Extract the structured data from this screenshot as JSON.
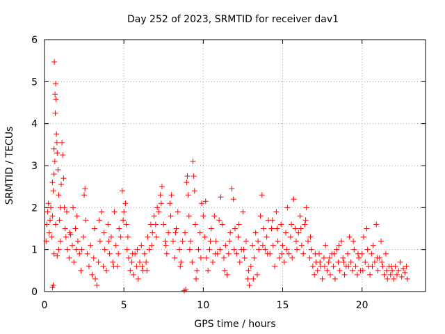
{
  "chart_data": {
    "type": "scatter",
    "title": "Day 252 of 2023, SRMTID for receiver dav1",
    "xlabel": "GPS time / hours",
    "ylabel": "SRMTID / TECUs",
    "xlim": [
      0,
      24
    ],
    "ylim": [
      0,
      6
    ],
    "xticks": [
      0,
      5,
      10,
      15,
      20
    ],
    "yticks": [
      0,
      1,
      2,
      3,
      4,
      5,
      6
    ],
    "grid": true,
    "marker": "+",
    "series": [
      {
        "name": "SRMTID",
        "color": "#ff0000",
        "points": [
          [
            0.1,
            1.2
          ],
          [
            0.15,
            1.6
          ],
          [
            0.2,
            1.9
          ],
          [
            0.25,
            2.1
          ],
          [
            0.3,
            1.4
          ],
          [
            0.35,
            1.7
          ],
          [
            0.4,
            2.0
          ],
          [
            0.45,
            1.3
          ],
          [
            0.5,
            1.8
          ],
          [
            0.55,
            2.4
          ],
          [
            0.6,
            2.8
          ],
          [
            0.62,
            5.47
          ],
          [
            0.66,
            4.7
          ],
          [
            0.7,
            4.95
          ],
          [
            0.72,
            4.58
          ],
          [
            0.68,
            4.25
          ],
          [
            0.75,
            3.75
          ],
          [
            0.78,
            3.55
          ],
          [
            0.8,
            3.3
          ],
          [
            0.85,
            2.9
          ],
          [
            0.6,
            3.4
          ],
          [
            0.65,
            3.1
          ],
          [
            0.5,
            2.6
          ],
          [
            0.55,
            0.15
          ],
          [
            0.5,
            0.1
          ],
          [
            0.9,
            2.3
          ],
          [
            0.95,
            1.7
          ],
          [
            1.0,
            2.0
          ],
          [
            1.05,
            2.55
          ],
          [
            1.1,
            3.55
          ],
          [
            1.15,
            3.25
          ],
          [
            1.2,
            2.7
          ],
          [
            1.25,
            2.0
          ],
          [
            1.3,
            1.5
          ],
          [
            1.0,
            1.2
          ],
          [
            0.9,
            1.0
          ],
          [
            0.8,
            0.85
          ],
          [
            0.7,
            1.6
          ],
          [
            0.6,
            0.9
          ],
          [
            1.35,
            1.3
          ],
          [
            1.45,
            1.0
          ],
          [
            1.55,
            0.8
          ],
          [
            1.65,
            1.35
          ],
          [
            1.75,
            1.1
          ],
          [
            1.85,
            0.7
          ],
          [
            1.95,
            1.5
          ],
          [
            2.05,
            1.8
          ],
          [
            2.1,
            1.2
          ],
          [
            2.2,
            0.9
          ],
          [
            2.3,
            0.5
          ],
          [
            2.35,
            1.0
          ],
          [
            2.45,
            1.3
          ],
          [
            2.5,
            2.3
          ],
          [
            2.55,
            2.45
          ],
          [
            2.6,
            1.7
          ],
          [
            2.7,
            0.9
          ],
          [
            2.8,
            0.6
          ],
          [
            2.9,
            1.1
          ],
          [
            3.0,
            0.4
          ],
          [
            3.1,
            0.8
          ],
          [
            3.2,
            0.3
          ],
          [
            3.3,
            0.15
          ],
          [
            3.4,
            0.7
          ],
          [
            3.5,
            1.2
          ],
          [
            3.6,
            1.9
          ],
          [
            3.7,
            0.6
          ],
          [
            3.8,
            1.0
          ],
          [
            3.9,
            0.5
          ],
          [
            4.0,
            1.6
          ],
          [
            4.1,
            0.9
          ],
          [
            4.2,
            1.3
          ],
          [
            4.3,
            0.7
          ],
          [
            4.4,
            1.9
          ],
          [
            4.5,
            1.1
          ],
          [
            4.6,
            0.6
          ],
          [
            4.7,
            1.5
          ],
          [
            4.8,
            1.3
          ],
          [
            4.9,
            2.4
          ],
          [
            5.0,
            1.9
          ],
          [
            5.1,
            2.1
          ],
          [
            5.15,
            1.6
          ],
          [
            5.2,
            1.0
          ],
          [
            5.3,
            0.8
          ],
          [
            5.4,
            0.5
          ],
          [
            5.5,
            0.7
          ],
          [
            5.6,
            0.4
          ],
          [
            5.7,
            0.9
          ],
          [
            5.8,
            0.6
          ],
          [
            5.9,
            0.3
          ],
          [
            6.0,
            0.7
          ],
          [
            6.1,
            1.1
          ],
          [
            6.2,
            0.5
          ],
          [
            6.3,
            0.9
          ],
          [
            6.4,
            0.7
          ],
          [
            6.5,
            1.3
          ],
          [
            6.6,
            1.0
          ],
          [
            6.7,
            1.6
          ],
          [
            6.8,
            1.4
          ],
          [
            6.9,
            1.8
          ],
          [
            7.0,
            1.6
          ],
          [
            7.1,
            2.0
          ],
          [
            7.2,
            1.9
          ],
          [
            7.3,
            2.3
          ],
          [
            7.4,
            2.5
          ],
          [
            7.5,
            1.6
          ],
          [
            7.6,
            1.2
          ],
          [
            7.7,
            0.9
          ],
          [
            7.8,
            1.4
          ],
          [
            7.9,
            2.1
          ],
          [
            8.0,
            2.3
          ],
          [
            8.1,
            1.2
          ],
          [
            8.2,
            0.8
          ],
          [
            8.3,
            1.5
          ],
          [
            8.4,
            1.9
          ],
          [
            8.5,
            1.0
          ],
          [
            8.6,
            0.7
          ],
          [
            8.7,
            1.2
          ],
          [
            8.8,
            0.02
          ],
          [
            8.9,
            0.05
          ],
          [
            8.95,
            2.6
          ],
          [
            9.0,
            2.75
          ],
          [
            9.05,
            2.3
          ],
          [
            9.1,
            1.8
          ],
          [
            9.2,
            1.2
          ],
          [
            9.3,
            0.7
          ],
          [
            9.35,
            3.1
          ],
          [
            9.4,
            2.75
          ],
          [
            9.45,
            2.4
          ],
          [
            9.5,
            1.6
          ],
          [
            9.6,
            0.5
          ],
          [
            9.7,
            1.0
          ],
          [
            9.8,
            1.4
          ],
          [
            9.9,
            2.1
          ],
          [
            10.0,
            1.8
          ],
          [
            10.1,
            1.3
          ],
          [
            10.2,
            0.8
          ],
          [
            10.3,
            0.5
          ],
          [
            10.4,
            1.0
          ],
          [
            10.5,
            1.5
          ],
          [
            10.6,
            0.7
          ],
          [
            10.7,
            1.8
          ],
          [
            10.8,
            1.2
          ],
          [
            10.9,
            0.9
          ],
          [
            11.0,
            1.7
          ],
          [
            11.1,
            2.25
          ],
          [
            11.2,
            1.6
          ],
          [
            11.3,
            0.8
          ],
          [
            11.4,
            1.1
          ],
          [
            11.5,
            0.4
          ],
          [
            11.6,
            0.9
          ],
          [
            11.7,
            1.4
          ],
          [
            11.8,
            2.45
          ],
          [
            11.9,
            2.2
          ],
          [
            12.0,
            1.5
          ],
          [
            12.1,
            0.9
          ],
          [
            12.2,
            1.3
          ],
          [
            12.3,
            0.7
          ],
          [
            12.4,
            1.0
          ],
          [
            12.5,
            1.9
          ],
          [
            12.6,
            0.8
          ],
          [
            12.7,
            1.2
          ],
          [
            12.8,
            0.3
          ],
          [
            12.9,
            0.15
          ],
          [
            13.0,
            0.6
          ],
          [
            13.1,
            1.1
          ],
          [
            13.2,
            0.8
          ],
          [
            13.3,
            1.4
          ],
          [
            13.4,
            0.4
          ],
          [
            13.5,
            1.0
          ],
          [
            13.6,
            1.8
          ],
          [
            13.7,
            2.3
          ],
          [
            13.8,
            1.5
          ],
          [
            13.9,
            1.0
          ],
          [
            14.0,
            1.3
          ],
          [
            14.1,
            1.7
          ],
          [
            14.2,
            0.9
          ],
          [
            14.3,
            1.5
          ],
          [
            14.4,
            1.1
          ],
          [
            14.5,
            0.6
          ],
          [
            14.6,
            1.9
          ],
          [
            14.7,
            1.2
          ],
          [
            14.8,
            0.8
          ],
          [
            14.9,
            1.6
          ],
          [
            15.0,
            1.1
          ],
          [
            15.1,
            0.7
          ],
          [
            15.2,
            1.4
          ],
          [
            15.3,
            2.0
          ],
          [
            15.4,
            0.9
          ],
          [
            15.5,
            1.3
          ],
          [
            15.6,
            0.8
          ],
          [
            15.7,
            2.2
          ],
          [
            15.8,
            1.5
          ],
          [
            15.9,
            1.0
          ],
          [
            16.0,
            1.4
          ],
          [
            16.1,
            1.8
          ],
          [
            16.2,
            1.1
          ],
          [
            16.3,
            0.9
          ],
          [
            16.4,
            1.6
          ],
          [
            16.5,
            2.0
          ],
          [
            16.6,
            1.2
          ],
          [
            16.7,
            0.8
          ],
          [
            16.8,
            1.0
          ],
          [
            16.9,
            0.6
          ],
          [
            17.0,
            0.4
          ],
          [
            17.1,
            0.7
          ],
          [
            17.2,
            0.5
          ],
          [
            17.3,
            0.9
          ],
          [
            17.4,
            0.6
          ],
          [
            17.5,
            0.3
          ],
          [
            17.6,
            0.8
          ],
          [
            17.7,
            1.1
          ],
          [
            17.8,
            0.5
          ],
          [
            17.9,
            0.7
          ],
          [
            18.0,
            0.4
          ],
          [
            18.1,
            0.9
          ],
          [
            18.2,
            0.6
          ],
          [
            18.3,
            0.3
          ],
          [
            18.4,
            1.0
          ],
          [
            18.5,
            0.7
          ],
          [
            18.6,
            0.5
          ],
          [
            18.7,
            1.2
          ],
          [
            18.8,
            0.8
          ],
          [
            18.9,
            0.4
          ],
          [
            19.0,
            0.6
          ],
          [
            19.1,
            0.9
          ],
          [
            19.2,
            1.3
          ],
          [
            19.3,
            0.7
          ],
          [
            19.4,
            0.5
          ],
          [
            19.5,
            1.0
          ],
          [
            19.6,
            0.6
          ],
          [
            19.7,
            0.4
          ],
          [
            19.8,
            0.8
          ],
          [
            19.9,
            0.5
          ],
          [
            20.0,
            0.9
          ],
          [
            20.1,
            1.3
          ],
          [
            20.2,
            0.7
          ],
          [
            20.3,
            1.5
          ],
          [
            20.4,
            0.6
          ],
          [
            20.5,
            0.4
          ],
          [
            20.6,
            0.9
          ],
          [
            20.7,
            1.1
          ],
          [
            20.8,
            0.7
          ],
          [
            20.9,
            1.6
          ],
          [
            21.0,
            0.5
          ],
          [
            21.1,
            0.8
          ],
          [
            21.2,
            1.2
          ],
          [
            21.3,
            0.6
          ],
          [
            21.4,
            0.4
          ],
          [
            21.5,
            0.9
          ],
          [
            21.6,
            0.3
          ],
          [
            21.7,
            0.6
          ],
          [
            21.8,
            0.4
          ],
          [
            21.9,
            0.5
          ],
          [
            22.0,
            0.3
          ],
          [
            22.1,
            0.6
          ],
          [
            22.2,
            0.4
          ],
          [
            22.3,
            0.5
          ],
          [
            22.4,
            0.7
          ],
          [
            22.5,
            0.35
          ],
          [
            22.6,
            0.55
          ],
          [
            22.7,
            0.45
          ],
          [
            22.8,
            0.6
          ],
          [
            22.85,
            0.3
          ],
          [
            1.4,
            1.9
          ],
          [
            1.6,
            1.4
          ],
          [
            1.8,
            2.0
          ],
          [
            2.0,
            1.0
          ],
          [
            3.15,
            1.5
          ],
          [
            3.45,
            1.7
          ],
          [
            3.75,
            1.4
          ],
          [
            4.05,
            1.2
          ],
          [
            4.35,
            0.6
          ],
          [
            4.65,
            0.9
          ],
          [
            4.95,
            1.7
          ],
          [
            5.25,
            1.3
          ],
          [
            5.55,
            0.9
          ],
          [
            5.85,
            1.0
          ],
          [
            6.15,
            0.6
          ],
          [
            6.45,
            0.5
          ],
          [
            6.75,
            1.1
          ],
          [
            7.05,
            1.3
          ],
          [
            7.35,
            2.1
          ],
          [
            7.65,
            1.1
          ],
          [
            7.95,
            1.8
          ],
          [
            8.25,
            1.4
          ],
          [
            8.55,
            0.6
          ],
          [
            8.85,
            1.4
          ],
          [
            9.15,
            1.0
          ],
          [
            9.55,
            0.3
          ],
          [
            9.85,
            0.8
          ],
          [
            10.15,
            2.15
          ],
          [
            10.45,
            1.2
          ],
          [
            10.75,
            0.9
          ],
          [
            11.05,
            1.0
          ],
          [
            11.35,
            0.5
          ],
          [
            11.65,
            1.2
          ],
          [
            11.95,
            1.0
          ],
          [
            12.25,
            1.6
          ],
          [
            12.55,
            1.0
          ],
          [
            12.85,
            0.5
          ],
          [
            13.15,
            0.3
          ],
          [
            13.45,
            1.2
          ],
          [
            13.75,
            1.1
          ],
          [
            14.05,
            0.9
          ],
          [
            14.35,
            1.7
          ],
          [
            14.65,
            1.5
          ],
          [
            14.95,
            0.9
          ],
          [
            15.25,
            1.0
          ],
          [
            15.55,
            1.6
          ],
          [
            15.85,
            1.2
          ],
          [
            16.15,
            1.5
          ],
          [
            16.45,
            1.7
          ],
          [
            16.75,
            1.3
          ],
          [
            17.05,
            0.9
          ],
          [
            17.35,
            0.7
          ],
          [
            17.65,
            0.6
          ],
          [
            17.95,
            0.8
          ],
          [
            18.25,
            0.9
          ],
          [
            18.55,
            1.1
          ],
          [
            18.85,
            0.7
          ],
          [
            19.15,
            0.6
          ],
          [
            19.45,
            1.2
          ],
          [
            19.75,
            0.9
          ],
          [
            20.05,
            0.5
          ],
          [
            20.35,
            1.0
          ],
          [
            20.65,
            0.6
          ],
          [
            20.95,
            0.8
          ],
          [
            21.25,
            0.7
          ],
          [
            21.55,
            0.5
          ],
          [
            21.85,
            0.6
          ]
        ]
      }
    ]
  }
}
